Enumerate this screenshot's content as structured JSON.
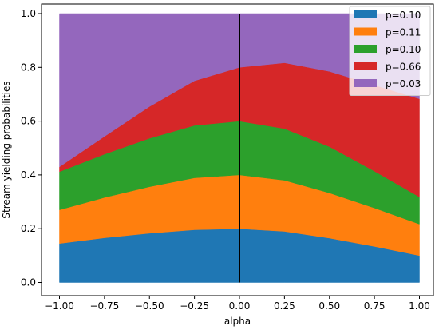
{
  "chart_data": {
    "type": "area",
    "stacked": true,
    "title": "",
    "xlabel": "alpha",
    "ylabel": "Stream yielding probabilities",
    "xlim": [
      -1.0,
      1.0
    ],
    "ylim": [
      0.0,
      1.0
    ],
    "x_ticks": [
      "−1.00",
      "−0.75",
      "−0.50",
      "−0.25",
      "0.00",
      "0.25",
      "0.50",
      "0.75",
      "1.00"
    ],
    "y_ticks": [
      "0.0",
      "0.2",
      "0.4",
      "0.6",
      "0.8",
      "1.0"
    ],
    "x": [
      -1.0,
      -0.75,
      -0.5,
      -0.25,
      0.0,
      0.25,
      0.5,
      0.75,
      1.0
    ],
    "series": [
      {
        "name": "p=0.10",
        "color": "#1f77b4",
        "values": [
          0.145,
          0.166,
          0.183,
          0.196,
          0.2,
          0.19,
          0.165,
          0.134,
          0.1
        ]
      },
      {
        "name": "p=0.11",
        "color": "#ff7f0e",
        "values": [
          0.125,
          0.15,
          0.173,
          0.193,
          0.2,
          0.19,
          0.168,
          0.143,
          0.117
        ]
      },
      {
        "name": "p=0.10",
        "color": "#2ca02c",
        "values": [
          0.142,
          0.161,
          0.18,
          0.195,
          0.2,
          0.192,
          0.172,
          0.137,
          0.101
        ]
      },
      {
        "name": "p=0.66",
        "color": "#d62728",
        "values": [
          0.018,
          0.066,
          0.118,
          0.166,
          0.2,
          0.245,
          0.28,
          0.32,
          0.365
        ]
      },
      {
        "name": "p=0.03",
        "color": "#9467bd",
        "values": [
          0.57,
          0.457,
          0.346,
          0.25,
          0.2,
          0.183,
          0.215,
          0.266,
          0.317
        ]
      }
    ],
    "vline_x": 0.0,
    "vline_color": "#000000",
    "legend_position": "top-right",
    "grid": false
  }
}
